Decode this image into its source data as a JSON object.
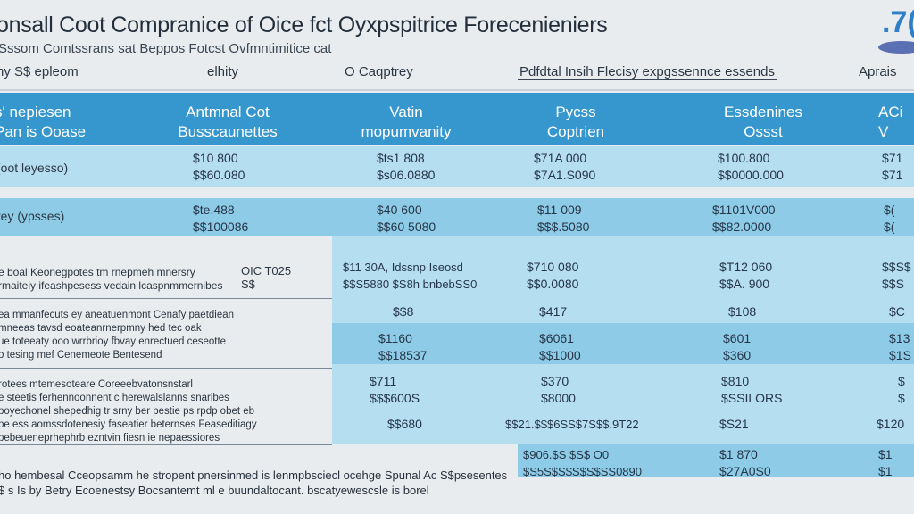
{
  "header": {
    "title": "onsall Coot Compranice of Oice fct Oyxpspitrice Forecenieniers",
    "subtitle": "Sssom  Comtssrans sat Beppos Fotcst Ovfmntimitice cat",
    "logo_text": ".7("
  },
  "tabs": [
    "hy  S$  epleom",
    "elhity",
    "O Caqptrey",
    "Pdfdtal Insih Flecisy expgssennce  essends",
    "Aprais"
  ],
  "table": {
    "columns": [
      {
        "line1": "s' nepiesen",
        "line2": "Pan is Ooase"
      },
      {
        "line1": "Antmnal Cot",
        "line2": "Busscaunettes"
      },
      {
        "line1": "Vatin",
        "line2": "mopumvanity"
      },
      {
        "line1": "Pycss",
        "line2": "Coptrien"
      },
      {
        "line1": "Essdenines",
        "line2": "Ossst"
      },
      {
        "line1": "ACi",
        "line2": "V"
      }
    ],
    "rows": [
      {
        "label": "(oot leyesso)",
        "cells": [
          [
            "$10 800",
            "$$60.080"
          ],
          [
            "$ts1 808",
            "$s06.0880"
          ],
          [
            "$71A 000",
            "$7A1.S090"
          ],
          [
            "$100.800",
            "$$0000.000"
          ],
          [
            "$71",
            "$71"
          ]
        ]
      },
      {
        "label": "rey (ypsses)",
        "cells": [
          [
            "$te.488",
            "$$100086"
          ],
          [
            "$40 600",
            "$$60 5080"
          ],
          [
            "$11 009",
            "$$$.5080"
          ],
          [
            "$1101V000",
            "$$82.0000"
          ],
          [
            "$(",
            "$("
          ]
        ]
      },
      {
        "label": "e boal Keonegpotes tm rnepmeh mnersry",
        "label2": "rmaiteiy ifeashpesess vedain lcaspnmmernibes",
        "tag": "OIC T025",
        "tag2": "S$",
        "cells": [
          [
            "$11 30A, Idssnp Iseosd",
            "$$S5880 $S8h  bnbebSS0"
          ],
          [
            "$710 080",
            "$$0.0080"
          ],
          [
            "$T12 060",
            "$$A. 900"
          ],
          [
            "$$S$",
            "$$S"
          ]
        ]
      },
      {
        "label": "ea mmanfecuts ey aneatuenmont Cenafy paetdiean",
        "label2": "mneeas tavsd eoateanrnerpmny hed tec oak",
        "label3": "ue toteeaty ooo wrrbrioy fbvay enrectued ceseotte",
        "label4": "o tesing mef Cenemeote Bentesend",
        "cells": [
          [
            "$$8"
          ],
          [
            "$417"
          ],
          [
            "$108"
          ],
          [
            "$C"
          ]
        ],
        "cells2": [
          [
            "$1160",
            "$$18537"
          ],
          [
            "$6061",
            "$$1000"
          ],
          [
            "$601",
            "$360"
          ],
          [
            "$13",
            "$1S"
          ]
        ]
      },
      {
        "label": "rotees mtemesoteare Coreeebvatonsnstarl",
        "label2": "e steetis ferhennoonnent c herewalslanns snaribes",
        "label3": "poyechonel shepedhig tr srny ber pestie ps rpdp obet eb",
        "label4": "pe ess aomssdotenesiy faseatier beternses Feaseditiagy",
        "label5": "pebeueneprhephrb ezntvin fiesn ie nepaessiores",
        "cells": [
          [
            "$711",
            "$$$600S"
          ],
          [
            "$370",
            "$8000"
          ],
          [
            "$810",
            "$SSILORS"
          ],
          [
            "$",
            "$"
          ]
        ],
        "cells2": [
          [
            "$$680"
          ],
          [
            "$$21.$$$6SS$7S$$.9T22"
          ],
          [
            "$S21"
          ],
          [
            "$120"
          ]
        ]
      },
      {
        "cells": [
          [
            "$906.$S  $S$ O0",
            "$S5S$S$S$S$SS0890"
          ],
          [
            "$1 870",
            "$27A0S0"
          ],
          [
            "$1",
            "$1"
          ]
        ]
      }
    ]
  },
  "footer": {
    "line1": "ho hembesal Cceopsamm he stropent pnersinmed is lenmpbsciecl ocehge Spunal Ac S$psesentes",
    "line2": "$ s Is by Betry Ecoenestsy Bocsantemt ml e buundaltocant. bscatyewescsle is borel"
  },
  "colors": {
    "header_band": "#3597ce",
    "row_dark": "#8dcbe6",
    "row_light": "#b5def0",
    "background": "#e9ecee"
  }
}
